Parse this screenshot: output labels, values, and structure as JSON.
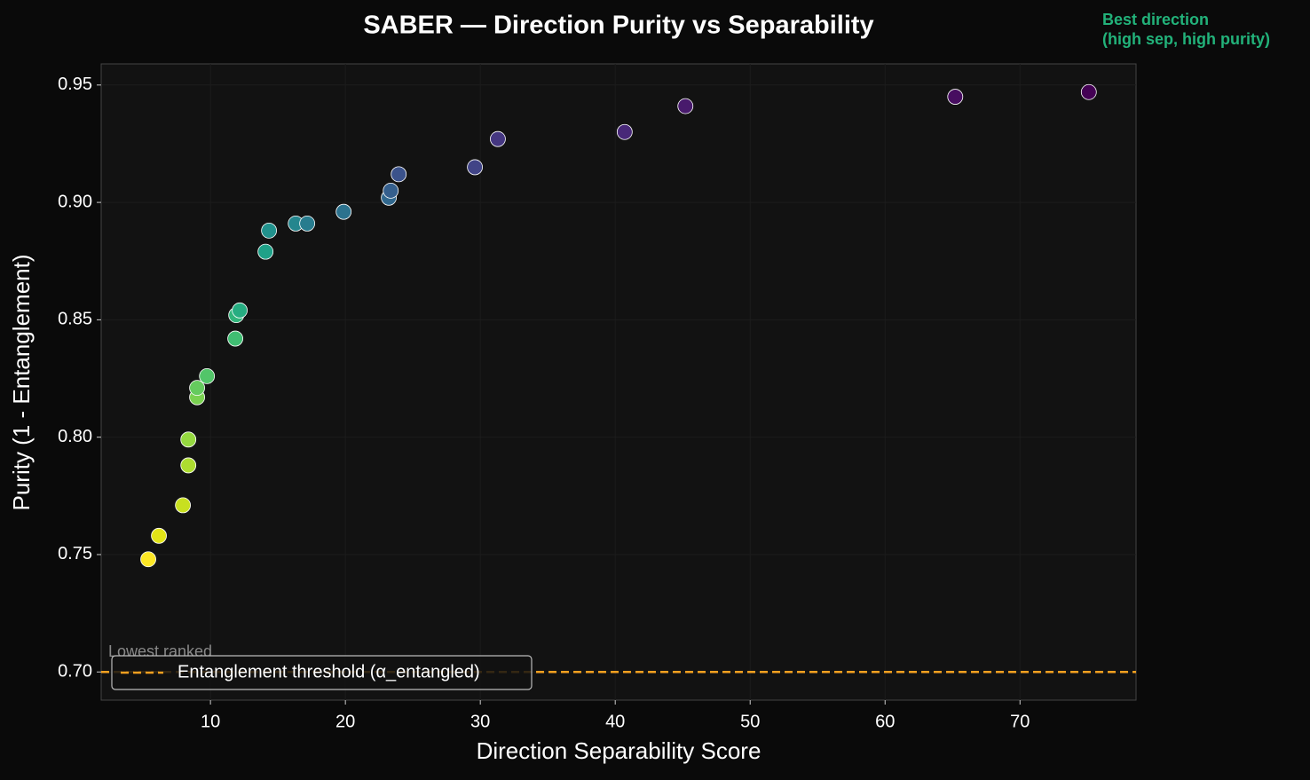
{
  "chart_data": {
    "type": "scatter",
    "title": "SABER — Direction Purity vs Separability",
    "xlabel": "Direction Separability Score",
    "ylabel": "Purity (1 - Entanglement)",
    "x": [
      5.39,
      6.18,
      7.96,
      8.36,
      8.36,
      9.01,
      9.01,
      9.74,
      11.84,
      11.91,
      12.17,
      14.08,
      14.34,
      16.32,
      17.17,
      19.87,
      23.22,
      23.36,
      23.95,
      29.6,
      31.3,
      40.7,
      45.2,
      65.2,
      75.1
    ],
    "series": [
      {
        "values": [
          0.748,
          0.758,
          0.771,
          0.788,
          0.799,
          0.817,
          0.821,
          0.826,
          0.842,
          0.852,
          0.854,
          0.879,
          0.888,
          0.891,
          0.891,
          0.896,
          0.902,
          0.905,
          0.912,
          0.915,
          0.927,
          0.93,
          0.941,
          0.945,
          0.947
        ],
        "colors": [
          "#fde725",
          "#e2e418",
          "#c8e020",
          "#addc30",
          "#95d840",
          "#7ad151",
          "#65cb5e",
          "#52c569",
          "#40bd72",
          "#31b57b",
          "#26ad81",
          "#1fa188",
          "#21918c",
          "#24868e",
          "#287c8e",
          "#2c728e",
          "#31688e",
          "#355f8d",
          "#3b528b",
          "#414487",
          "#453781",
          "#482878",
          "#481a6c",
          "#470d60",
          "#440154"
        ]
      }
    ],
    "xlim": [
      1.9,
      78.6
    ],
    "ylim": [
      0.688,
      0.959
    ],
    "xticks": [
      10,
      20,
      30,
      40,
      50,
      60,
      70
    ],
    "yticks": [
      {
        "value": 0.7,
        "label": "0.70"
      },
      0.75,
      {
        "value": 0.8,
        "label": "0.80"
      },
      0.85,
      {
        "value": 0.9,
        "label": "0.90"
      },
      0.95
    ],
    "grid": true,
    "hlines": [
      {
        "value": 0.7,
        "label": "Entanglement threshold (α_entangled)",
        "color": "#f5a020"
      }
    ],
    "legend": "lower left",
    "annotations": [
      {
        "text": [
          "Best direction",
          "(high sep, high purity)"
        ],
        "color": "#22b27a"
      },
      {
        "text": [
          "Lowest ranked"
        ],
        "color": "#888888"
      }
    ]
  }
}
